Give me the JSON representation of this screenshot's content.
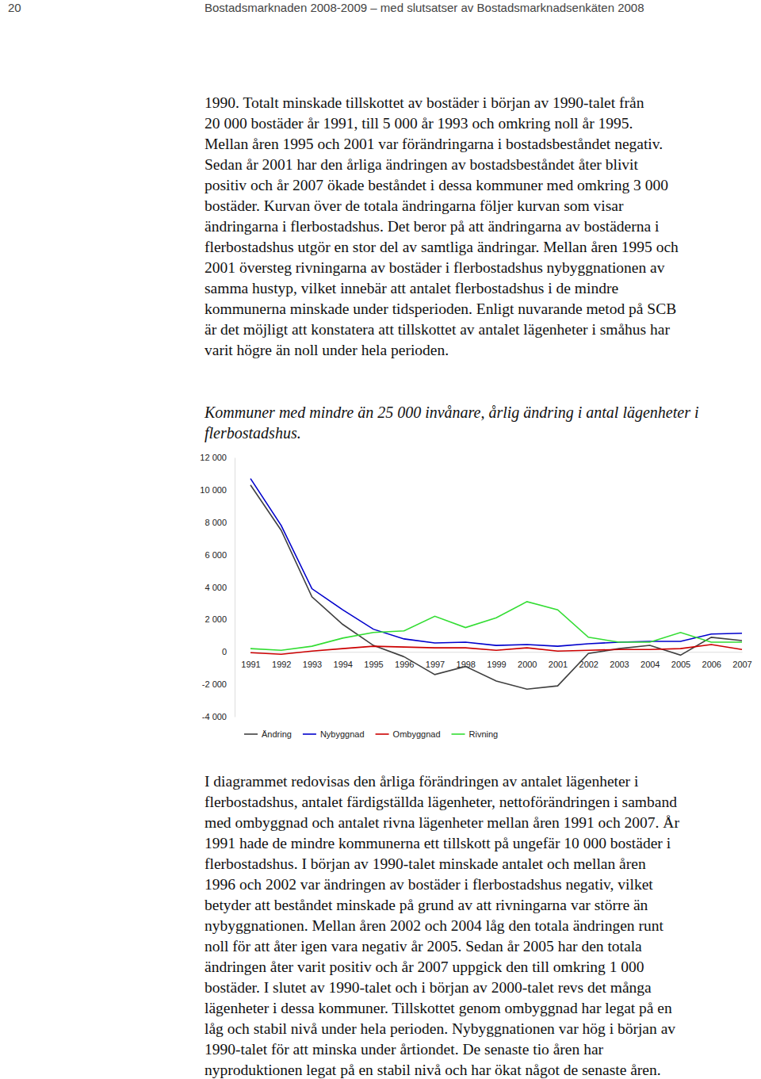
{
  "header": {
    "page": "20",
    "title": "Bostadsmarknaden 2008-2009 – med slutsatser av Bostadsmarknadsenkäten 2008"
  },
  "text_before": [
    "1990. Totalt minskade tillskottet av bostäder i början av 1990-talet från",
    "20 000 bostäder år 1991, till 5 000 år 1993 och omkring noll år 1995.",
    "Mellan åren 1995 och 2001 var förändringarna i bostadsbeståndet negativ.",
    "Sedan år 2001 har den årliga ändringen av bostadsbeståndet åter blivit",
    "positiv och år 2007 ökade beståndet i dessa kommuner med omkring 3 000",
    "bostäder. Kurvan över de totala ändringarna följer kurvan som visar",
    "ändringarna i flerbostadshus. Det beror på att ändringarna av bostäderna i",
    "flerbostadshus utgör en stor del av samtliga ändringar. Mellan åren 1995 och",
    "2001 översteg rivningarna av bostäder i flerbostadshus nybyggnationen av",
    "samma hustyp, vilket innebär att antalet flerbostadshus i de mindre",
    "kommunerna minskade under tidsperioden. Enligt nuvarande metod på SCB",
    "är det möjligt att konstatera att tillskottet av antalet lägenheter i småhus har",
    "varit högre än noll under hela perioden."
  ],
  "chart_data": {
    "type": "line",
    "title": "Kommuner med mindre än 25 000 invånare, årlig ändring i antal lägenheter i flerbostadshus.",
    "categories": [
      "1991",
      "1992",
      "1993",
      "1994",
      "1995",
      "1996",
      "1997",
      "1998",
      "1999",
      "2000",
      "2001",
      "2002",
      "2003",
      "2004",
      "2005",
      "2006",
      "2007"
    ],
    "series": [
      {
        "name": "Ändring",
        "color": "#404040",
        "values": [
          10300,
          7500,
          3400,
          1700,
          400,
          -300,
          -1400,
          -900,
          -1800,
          -2300,
          -2100,
          -100,
          200,
          400,
          -200,
          900,
          700
        ]
      },
      {
        "name": "Nybyggnad",
        "color": "#0000cc",
        "values": [
          10700,
          7800,
          3900,
          2600,
          1400,
          800,
          550,
          600,
          400,
          450,
          350,
          500,
          600,
          650,
          650,
          1100,
          1150
        ]
      },
      {
        "name": "Ombyggnad",
        "color": "#cc0000",
        "values": [
          -50,
          -150,
          50,
          200,
          350,
          300,
          250,
          250,
          100,
          250,
          50,
          100,
          150,
          150,
          200,
          450,
          150
        ]
      },
      {
        "name": "Rivning",
        "color": "#33dd33",
        "values": [
          200,
          100,
          350,
          850,
          1200,
          1300,
          2200,
          1500,
          2100,
          3100,
          2600,
          900,
          600,
          600,
          1200,
          600,
          600
        ]
      }
    ],
    "ylim": [
      -4000,
      12000
    ],
    "yticks": [
      {
        "value": -4000,
        "label": "-4 000"
      },
      {
        "value": -2000,
        "label": "-2 000"
      },
      0,
      {
        "value": 2000,
        "label": "2 000"
      },
      {
        "value": 4000,
        "label": "4 000"
      },
      {
        "value": 6000,
        "label": "6 000"
      },
      {
        "value": 8000,
        "label": "8 000"
      },
      {
        "value": 10000,
        "label": "10 000"
      },
      {
        "value": 12000,
        "label": "12 000"
      }
    ],
    "grid": false,
    "legend": "bottom"
  },
  "text_after": [
    "I diagrammet redovisas den årliga förändringen av antalet lägenheter i",
    "flerbostadshus, antalet färdigställda lägenheter, nettoförändringen i samband",
    "med ombyggnad och antalet rivna lägenheter mellan åren 1991 och 2007. År",
    "1991 hade de mindre kommunerna ett tillskott på ungefär 10 000 bostäder i",
    "flerbostadshus. I början av 1990-talet minskade antalet och mellan åren",
    "1996 och 2002 var ändringen av bostäder i flerbostadshus negativ, vilket",
    "betyder att beståndet minskade på grund av att rivningarna var större än",
    "nybyggnationen. Mellan åren 2002 och 2004 låg den totala ändringen runt",
    "noll för att åter igen vara negativ år 2005. Sedan år 2005 har den totala",
    "ändringen åter varit positiv och år 2007 uppgick den till omkring 1 000",
    "bostäder. I slutet av 1990-talet och i början av 2000-talet revs det många",
    "lägenheter i dessa kommuner. Tillskottet genom ombyggnad har legat på en",
    "låg och stabil nivå under hela perioden. Nybyggnationen var hög i början av",
    "1990-talet för att minska under årtiondet. De senaste tio åren har",
    "nyproduktionen legat på en stabil nivå och har ökat något de senaste åren."
  ]
}
